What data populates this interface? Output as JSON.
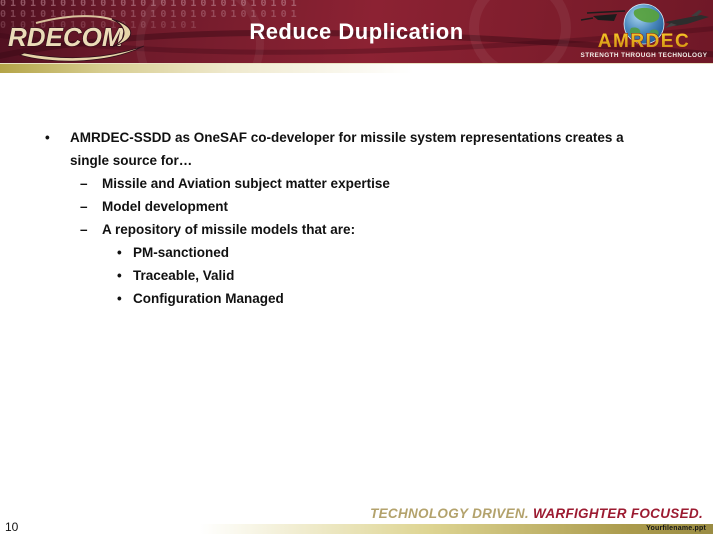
{
  "header": {
    "title": "Reduce Duplication",
    "rdecom_logo_text": "RDECOM",
    "binary_row": "010101010101010101010101010101",
    "amrdec_logo_text": "AMRDEC",
    "amrdec_tagline": "STRENGTH THROUGH TECHNOLOGY"
  },
  "content": {
    "bullet_glyphs": {
      "1": "•",
      "2": "–",
      "3": "•"
    },
    "bullets": [
      {
        "level": 1,
        "text": "AMRDEC-SSDD as OneSAF co-developer for missile system representations creates a single source for…"
      },
      {
        "level": 2,
        "text": "Missile and Aviation subject matter expertise"
      },
      {
        "level": 2,
        "text": "Model development"
      },
      {
        "level": 2,
        "text": "A repository of missile models that are:"
      },
      {
        "level": 3,
        "text": "PM-sanctioned"
      },
      {
        "level": 3,
        "text": "Traceable, Valid"
      },
      {
        "level": 3,
        "text": "Configuration Managed"
      }
    ]
  },
  "footer": {
    "slogan_technology": "TECHNOLOGY DRIVEN.",
    "slogan_warfighter": "WARFIGHTER FOCUSED.",
    "filename": "Yourfilename.ppt",
    "page_number": "10"
  },
  "colors": {
    "banner_maroon": "#7b1c2b",
    "banner_dark": "#4f1020",
    "divider_gold": "#b4a447",
    "slogan_gold": "#b3a26c",
    "slogan_red": "#9c1b31",
    "amrdec_gold": "#f0b81c",
    "rdecom_cream": "#ecdcb8",
    "body_text": "#111111"
  }
}
